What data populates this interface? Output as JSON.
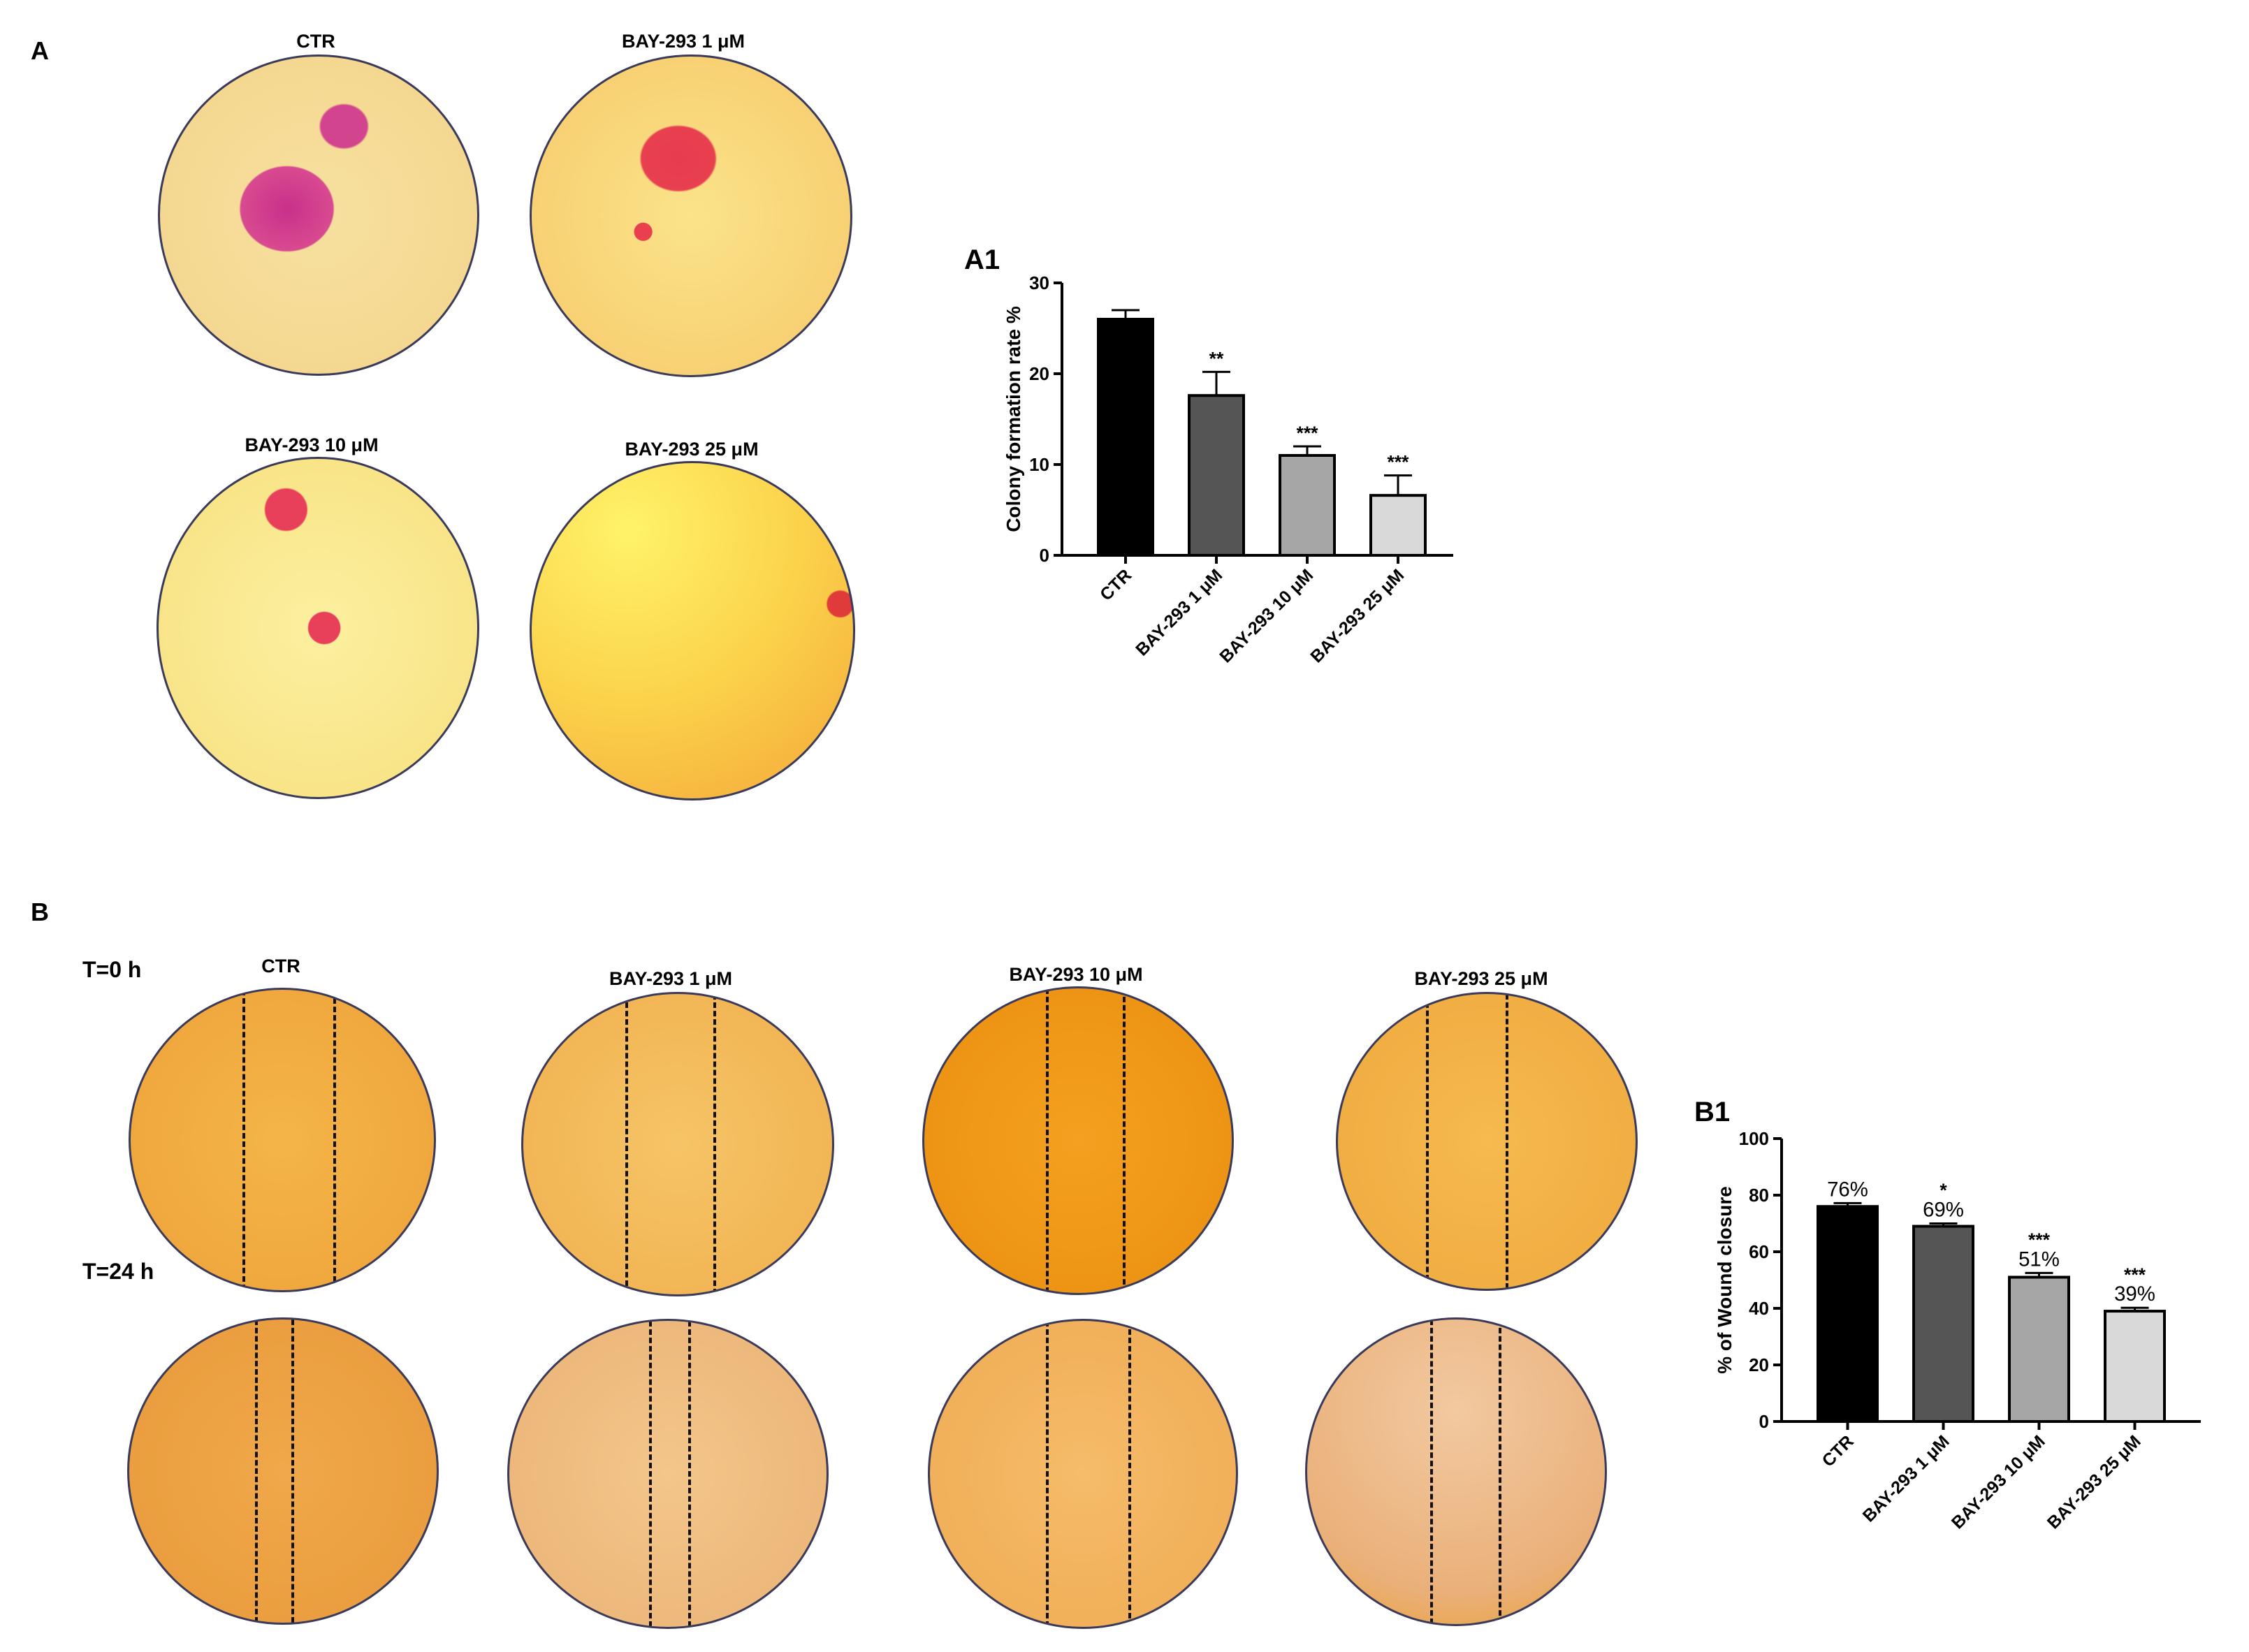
{
  "panels": {
    "A": "A",
    "A1": "A1",
    "B": "B",
    "B1": "B1"
  },
  "colony_images": [
    {
      "label": "CTR"
    },
    {
      "label": "BAY-293 1 μM"
    },
    {
      "label": "BAY-293 10 μM"
    },
    {
      "label": "BAY-293 25 μM"
    }
  ],
  "wound_images": {
    "row_labels": [
      "T=0 h",
      "T=24 h"
    ],
    "columns": [
      "CTR",
      "BAY-293 1 μM",
      "BAY-293 10 μM",
      "BAY-293 25 μM"
    ]
  },
  "colors": {
    "bar_fills": [
      "#000000",
      "#555555",
      "#a6a6a6",
      "#d9d9d9"
    ],
    "colony_bg": "#f6dd8a",
    "wound_bg": "#f0a63a"
  },
  "chart_data": [
    {
      "type": "bar",
      "panel": "A1",
      "categories": [
        "CTR",
        "BAY-293 1 μM",
        "BAY-293 10 μM",
        "BAY-293 25 μM"
      ],
      "values": [
        26,
        17.6,
        11,
        6.6
      ],
      "errors": [
        1,
        2.6,
        1,
        2.2
      ],
      "significance": [
        "",
        "**",
        "***",
        "***"
      ],
      "ylabel": "Colony formation rate %",
      "ylim": [
        0,
        30
      ],
      "yticks": [
        0,
        10,
        20,
        30
      ]
    },
    {
      "type": "bar",
      "panel": "B1",
      "categories": [
        "CTR",
        "BAY-293 1 μM",
        "BAY-293 10 μM",
        "BAY-293 25 μM"
      ],
      "values": [
        76,
        69,
        51,
        39
      ],
      "errors": [
        1.2,
        1,
        1.5,
        1.2
      ],
      "value_labels": [
        "76%",
        "69%",
        "51%",
        "39%"
      ],
      "significance": [
        "",
        "*",
        "***",
        "***"
      ],
      "ylabel": "% of Wound closure",
      "ylim": [
        0,
        100
      ],
      "yticks": [
        0,
        20,
        40,
        60,
        80,
        100
      ]
    }
  ]
}
